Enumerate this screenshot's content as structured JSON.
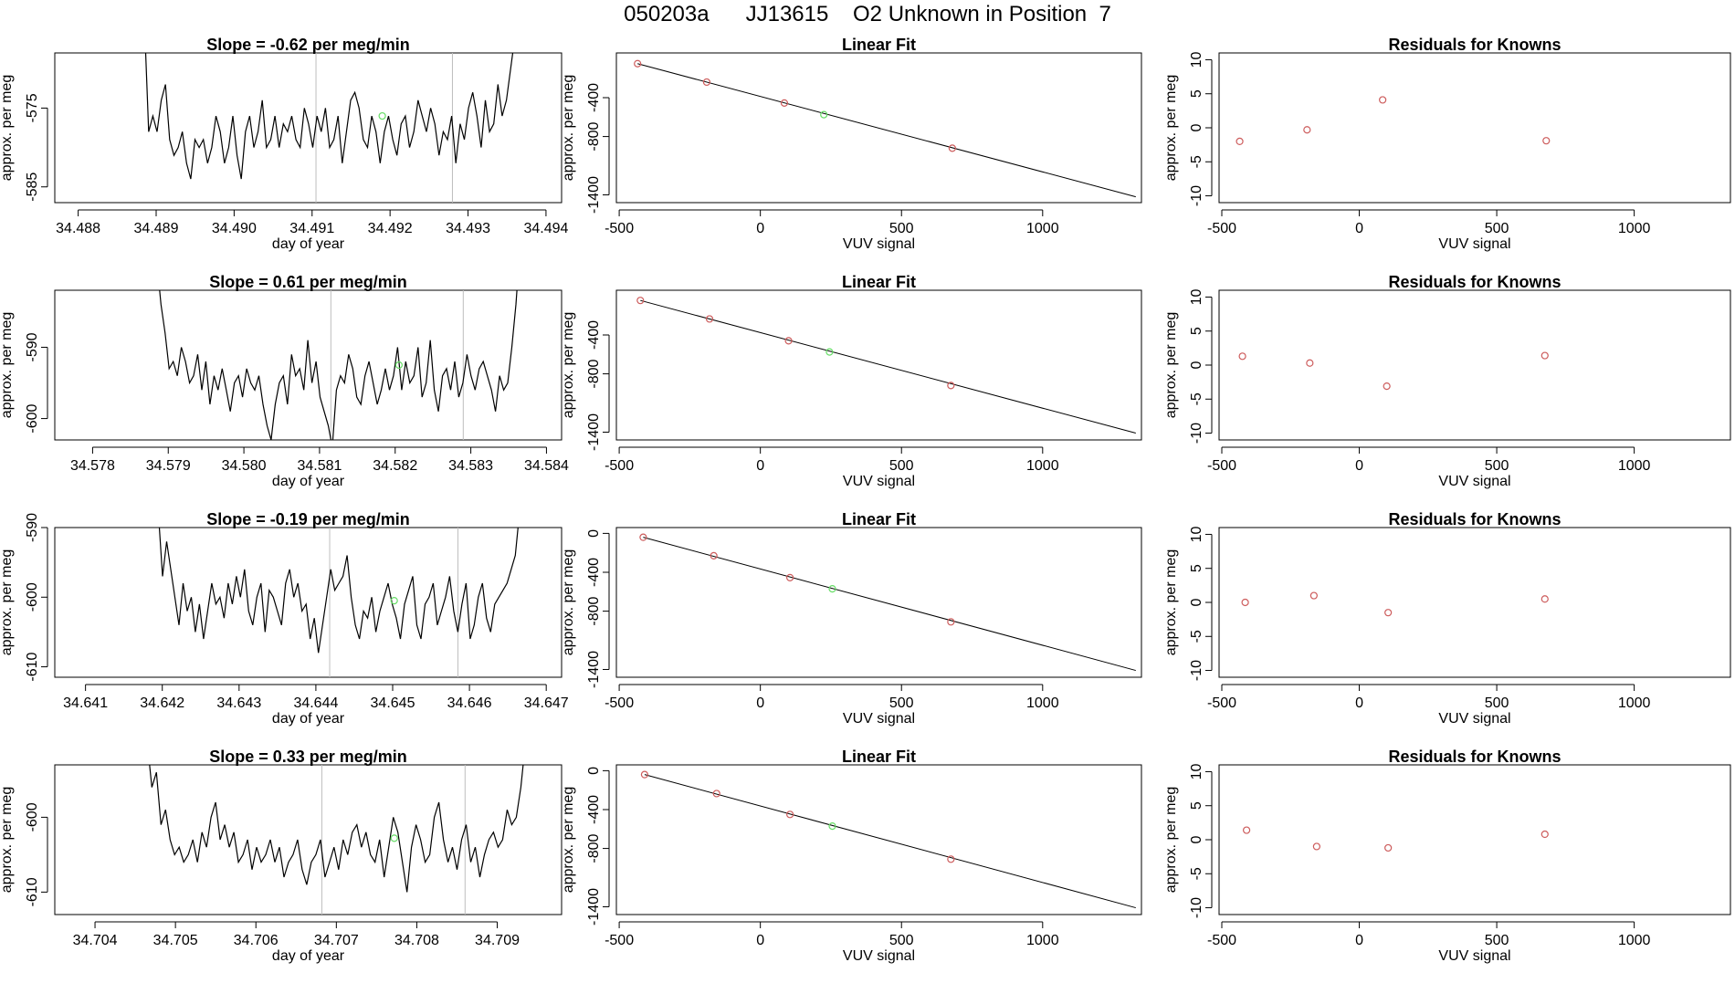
{
  "page_title": "050203a      JJ13615    O2 Unknown in Position  7",
  "colors": {
    "line": "#000000",
    "known": "#cd5c5c",
    "unknown": "#66dd66",
    "vline": "#bebebe"
  },
  "chart_data": [
    {
      "type": "line",
      "panel": "timeseries-1",
      "title": "Slope =  -0.62  per meg/min",
      "xlabel": "day of year",
      "ylabel": "approx. per meg",
      "xlim": [
        34.4877,
        34.4942
      ],
      "ylim": [
        -587,
        -568
      ],
      "xticks": [
        "34.488",
        "34.489",
        "34.490",
        "34.491",
        "34.492",
        "34.493",
        "34.494"
      ],
      "yticks": [
        "-575",
        "-585"
      ],
      "vlines": [
        34.49105,
        34.4928
      ],
      "series": [
        {
          "x_start": 34.48885,
          "x_end": 34.4936,
          "y": [
            -564,
            -578,
            -576,
            -578,
            -574,
            -572,
            -579,
            -581,
            -580,
            -578,
            -582,
            -584,
            -579,
            -580,
            -579,
            -582,
            -580,
            -576,
            -578,
            -582,
            -580,
            -576,
            -581,
            -584,
            -578,
            -576,
            -580,
            -578,
            -574,
            -580,
            -579,
            -576,
            -580,
            -577,
            -578,
            -576,
            -579,
            -580,
            -575,
            -577,
            -580,
            -576,
            -578,
            -575,
            -580,
            -579,
            -576,
            -582,
            -578,
            -574,
            -573,
            -575,
            -579,
            -580,
            -576,
            -578,
            -582,
            -578,
            -576,
            -579,
            -581,
            -577,
            -576,
            -580,
            -578,
            -574,
            -576,
            -578,
            -575,
            -577,
            -581,
            -578,
            -579,
            -576,
            -582,
            -577,
            -579,
            -575,
            -573,
            -576,
            -580,
            -574,
            -578,
            -577,
            -572,
            -576,
            -574,
            -570,
            -566
          ]
        }
      ],
      "unknown_point": {
        "x": 34.4919,
        "y": -576
      }
    },
    {
      "type": "line",
      "panel": "timeseries-2",
      "title": "Slope =  0.61  per meg/min",
      "xlabel": "day of year",
      "ylabel": "approx. per meg",
      "xlim": [
        34.5775,
        34.5842
      ],
      "ylim": [
        -603,
        -582
      ],
      "xticks": [
        "34.578",
        "34.579",
        "34.580",
        "34.581",
        "34.582",
        "34.583",
        "34.584"
      ],
      "yticks": [
        "-590",
        "-600"
      ],
      "vlines": [
        34.58115,
        34.5829
      ],
      "series": [
        {
          "x_start": 34.57885,
          "x_end": 34.58365,
          "y": [
            -578,
            -584,
            -588,
            -593,
            -592,
            -594,
            -590,
            -592,
            -595,
            -594,
            -591,
            -596,
            -592,
            -598,
            -594,
            -596,
            -593,
            -596,
            -599,
            -595,
            -594,
            -597,
            -593,
            -595,
            -596,
            -594,
            -598,
            -601,
            -603,
            -598,
            -595,
            -594,
            -598,
            -591,
            -594,
            -593,
            -596,
            -589,
            -595,
            -592,
            -597,
            -599,
            -601,
            -604,
            -596,
            -594,
            -595,
            -591,
            -593,
            -597,
            -598,
            -594,
            -592,
            -595,
            -598,
            -596,
            -593,
            -596,
            -594,
            -590,
            -596,
            -592,
            -595,
            -594,
            -590,
            -597,
            -595,
            -589,
            -596,
            -599,
            -594,
            -593,
            -596,
            -592,
            -597,
            -595,
            -591,
            -594,
            -596,
            -593,
            -592,
            -594,
            -596,
            -599,
            -594,
            -596,
            -595,
            -590,
            -584,
            -576
          ]
        }
      ],
      "unknown_point": {
        "x": 34.58205,
        "y": -592.5
      }
    },
    {
      "type": "line",
      "panel": "timeseries-3",
      "title": "Slope =  -0.19  per meg/min",
      "xlabel": "day of year",
      "ylabel": "approx. per meg",
      "xlim": [
        34.6406,
        34.6472
      ],
      "ylim": [
        -611.5,
        -590
      ],
      "xticks": [
        "34.641",
        "34.642",
        "34.643",
        "34.644",
        "34.645",
        "34.646",
        "34.647"
      ],
      "yticks": [
        "-590",
        "-600",
        "-610"
      ],
      "vlines": [
        34.64418,
        34.64585
      ],
      "series": [
        {
          "x_start": 34.64195,
          "x_end": 34.64665,
          "y": [
            -588,
            -597,
            -592,
            -596,
            -600,
            -604,
            -598,
            -602,
            -600,
            -605,
            -601,
            -606,
            -602,
            -598,
            -601,
            -600,
            -603,
            -598,
            -601,
            -597,
            -600,
            -596,
            -602,
            -604,
            -600,
            -598,
            -605,
            -599,
            -600,
            -602,
            -604,
            -598,
            -596,
            -600,
            -598,
            -602,
            -601,
            -606,
            -603,
            -608,
            -604,
            -600,
            -596,
            -599,
            -598,
            -597,
            -594,
            -600,
            -604,
            -606,
            -602,
            -603,
            -600,
            -605,
            -602,
            -600,
            -598,
            -601,
            -603,
            -606,
            -601,
            -599,
            -597,
            -604,
            -606,
            -601,
            -600,
            -598,
            -604,
            -602,
            -600,
            -597,
            -602,
            -605,
            -601,
            -598,
            -606,
            -604,
            -600,
            -598,
            -603,
            -605,
            -601,
            -600,
            -599,
            -598,
            -596,
            -594,
            -588
          ]
        }
      ],
      "unknown_point": {
        "x": 34.64502,
        "y": -600.5
      }
    },
    {
      "type": "line",
      "panel": "timeseries-4",
      "title": "Slope =  0.33  per meg/min",
      "xlabel": "day of year",
      "ylabel": "approx. per meg",
      "xlim": [
        34.7035,
        34.7098
      ],
      "ylim": [
        -613,
        -593
      ],
      "xticks": [
        "34.704",
        "34.705",
        "34.706",
        "34.707",
        "34.708",
        "34.709"
      ],
      "yticks": [
        "-600",
        "-610"
      ],
      "vlines": [
        34.70682,
        34.7086
      ],
      "series": [
        {
          "x_start": 34.70465,
          "x_end": 34.70935,
          "y": [
            -590,
            -596,
            -594,
            -601,
            -599,
            -603,
            -605,
            -604,
            -606,
            -605,
            -603,
            -606,
            -602,
            -604,
            -600,
            -598,
            -603,
            -601,
            -604,
            -602,
            -606,
            -605,
            -603,
            -607,
            -604,
            -606,
            -605,
            -603,
            -606,
            -604,
            -608,
            -606,
            -605,
            -603,
            -607,
            -609,
            -606,
            -605,
            -603,
            -608,
            -606,
            -604,
            -607,
            -603,
            -605,
            -602,
            -601,
            -604,
            -602,
            -605,
            -606,
            -603,
            -608,
            -604,
            -600,
            -602,
            -606,
            -610,
            -604,
            -601,
            -603,
            -606,
            -605,
            -600,
            -598,
            -603,
            -606,
            -604,
            -607,
            -603,
            -601,
            -606,
            -604,
            -608,
            -605,
            -603,
            -602,
            -604,
            -603,
            -599,
            -601,
            -600,
            -596,
            -590
          ]
        }
      ],
      "unknown_point": {
        "x": 34.70772,
        "y": -602.8
      }
    },
    {
      "type": "scatter",
      "panel": "fit-1",
      "title": "Linear Fit",
      "xlabel": "VUV signal",
      "ylabel": "approx. per meg",
      "xlim": [
        -510,
        1350
      ],
      "ylim": [
        -1480,
        60
      ],
      "xticks": [
        -500,
        0,
        500,
        1000
      ],
      "yticks": [
        -400,
        -800,
        -1400
      ],
      "line": {
        "x": [
          -435,
          1330
        ],
        "y": [
          -50,
          -1420
        ]
      },
      "knowns": [
        {
          "x": -435,
          "y": -50
        },
        {
          "x": -190,
          "y": -240
        },
        {
          "x": 85,
          "y": -455
        },
        {
          "x": 680,
          "y": -920
        }
      ],
      "unknown": {
        "x": 225,
        "y": -575
      }
    },
    {
      "type": "scatter",
      "panel": "fit-2",
      "title": "Linear Fit",
      "xlabel": "VUV signal",
      "ylabel": "approx. per meg",
      "xlim": [
        -510,
        1350
      ],
      "ylim": [
        -1480,
        60
      ],
      "xticks": [
        -500,
        0,
        500,
        1000
      ],
      "yticks": [
        -400,
        -800,
        -1400
      ],
      "line": {
        "x": [
          -425,
          1330
        ],
        "y": [
          -45,
          -1410
        ]
      },
      "knowns": [
        {
          "x": -425,
          "y": -45
        },
        {
          "x": -180,
          "y": -235
        },
        {
          "x": 100,
          "y": -460
        },
        {
          "x": 675,
          "y": -920
        }
      ],
      "unknown": {
        "x": 245,
        "y": -575
      }
    },
    {
      "type": "scatter",
      "panel": "fit-3",
      "title": "Linear Fit",
      "xlabel": "VUV signal",
      "ylabel": "approx. per meg",
      "xlim": [
        -510,
        1350
      ],
      "ylim": [
        -1480,
        60
      ],
      "xticks": [
        -500,
        0,
        500,
        1000
      ],
      "yticks": [
        0,
        -400,
        -800,
        -1400
      ],
      "line": {
        "x": [
          -415,
          1330
        ],
        "y": [
          -40,
          -1410
        ]
      },
      "knowns": [
        {
          "x": -415,
          "y": -40
        },
        {
          "x": -165,
          "y": -230
        },
        {
          "x": 105,
          "y": -455
        },
        {
          "x": 675,
          "y": -910
        }
      ],
      "unknown": {
        "x": 255,
        "y": -570
      }
    },
    {
      "type": "scatter",
      "panel": "fit-4",
      "title": "Linear Fit",
      "xlabel": "VUV signal",
      "ylabel": "approx. per meg",
      "xlim": [
        -510,
        1350
      ],
      "ylim": [
        -1480,
        60
      ],
      "xticks": [
        -500,
        0,
        500,
        1000
      ],
      "yticks": [
        0,
        -400,
        -800,
        -1400
      ],
      "line": {
        "x": [
          -410,
          1330
        ],
        "y": [
          -40,
          -1410
        ]
      },
      "knowns": [
        {
          "x": -410,
          "y": -40
        },
        {
          "x": -155,
          "y": -235
        },
        {
          "x": 105,
          "y": -450
        },
        {
          "x": 675,
          "y": -910
        }
      ],
      "unknown": {
        "x": 255,
        "y": -570
      }
    },
    {
      "type": "scatter",
      "panel": "resid-1",
      "title": "Residuals for Knowns",
      "xlabel": "VUV signal",
      "ylabel": "approx. per meg",
      "xlim": [
        -510,
        1350
      ],
      "ylim": [
        -11,
        11
      ],
      "xticks": [
        -500,
        0,
        500,
        1000
      ],
      "yticks": [
        10,
        5,
        0,
        -5,
        -10
      ],
      "points": [
        {
          "x": -435,
          "y": -2
        },
        {
          "x": -190,
          "y": -0.3
        },
        {
          "x": 85,
          "y": 4.1
        },
        {
          "x": 680,
          "y": -1.9
        }
      ]
    },
    {
      "type": "scatter",
      "panel": "resid-2",
      "title": "Residuals for Knowns",
      "xlabel": "VUV signal",
      "ylabel": "approx. per meg",
      "xlim": [
        -510,
        1350
      ],
      "ylim": [
        -11,
        11
      ],
      "xticks": [
        -500,
        0,
        500,
        1000
      ],
      "yticks": [
        10,
        5,
        0,
        -5,
        -10
      ],
      "points": [
        {
          "x": -425,
          "y": 1.3
        },
        {
          "x": -180,
          "y": 0.3
        },
        {
          "x": 100,
          "y": -3.1
        },
        {
          "x": 675,
          "y": 1.4
        }
      ]
    },
    {
      "type": "scatter",
      "panel": "resid-3",
      "title": "Residuals for Knowns",
      "xlabel": "VUV signal",
      "ylabel": "approx. per meg",
      "xlim": [
        -510,
        1350
      ],
      "ylim": [
        -11,
        11
      ],
      "xticks": [
        -500,
        0,
        500,
        1000
      ],
      "yticks": [
        10,
        5,
        0,
        -5,
        -10
      ],
      "points": [
        {
          "x": -415,
          "y": 0
        },
        {
          "x": -165,
          "y": 1
        },
        {
          "x": 105,
          "y": -1.5
        },
        {
          "x": 675,
          "y": 0.5
        }
      ]
    },
    {
      "type": "scatter",
      "panel": "resid-4",
      "title": "Residuals for Knowns",
      "xlabel": "VUV signal",
      "ylabel": "approx. per meg",
      "xlim": [
        -510,
        1350
      ],
      "ylim": [
        -11,
        11
      ],
      "xticks": [
        -500,
        0,
        500,
        1000
      ],
      "yticks": [
        10,
        5,
        0,
        -5,
        -10
      ],
      "points": [
        {
          "x": -410,
          "y": 1.4
        },
        {
          "x": -155,
          "y": -1
        },
        {
          "x": 105,
          "y": -1.2
        },
        {
          "x": 675,
          "y": 0.8
        }
      ]
    }
  ]
}
